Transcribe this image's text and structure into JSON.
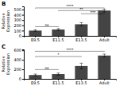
{
  "chart_data": [
    {
      "type": "bar",
      "title": "B",
      "categories": [
        "E9.5",
        "E11.5",
        "E13.5",
        "Adult"
      ],
      "values": [
        100,
        120,
        220,
        480
      ],
      "errors": [
        15,
        18,
        30,
        25
      ],
      "color": "#444444",
      "ylabel": "Relative\nExpression",
      "ylim": [
        0,
        560
      ],
      "yticks": [
        0,
        100,
        200,
        300,
        400,
        500
      ],
      "grid": false,
      "annotations": [
        {
          "x1": 0,
          "x2": 3,
          "y": 530,
          "label": "****"
        },
        {
          "x1": 1,
          "x2": 3,
          "y": 480,
          "label": "**"
        },
        {
          "x1": 2,
          "x2": 3,
          "y": 420,
          "label": "***"
        },
        {
          "x1": 0,
          "x2": 1,
          "y": 175,
          "label": "ns"
        }
      ]
    },
    {
      "type": "bar",
      "title": "C",
      "categories": [
        "E9.5",
        "E11.5",
        "E13.5",
        "Adult"
      ],
      "values": [
        80,
        100,
        270,
        490
      ],
      "errors": [
        20,
        22,
        60,
        30
      ],
      "color": "#444444",
      "ylabel": "Relative\nExpression",
      "ylim": [
        0,
        620
      ],
      "yticks": [
        0,
        200,
        400,
        600
      ],
      "grid": false,
      "annotations": [
        {
          "x1": 0,
          "x2": 3,
          "y": 580,
          "label": "****"
        },
        {
          "x1": 0,
          "x2": 2,
          "y": 470,
          "label": "*"
        },
        {
          "x1": 0,
          "x2": 1,
          "y": 195,
          "label": "ns"
        }
      ]
    }
  ]
}
